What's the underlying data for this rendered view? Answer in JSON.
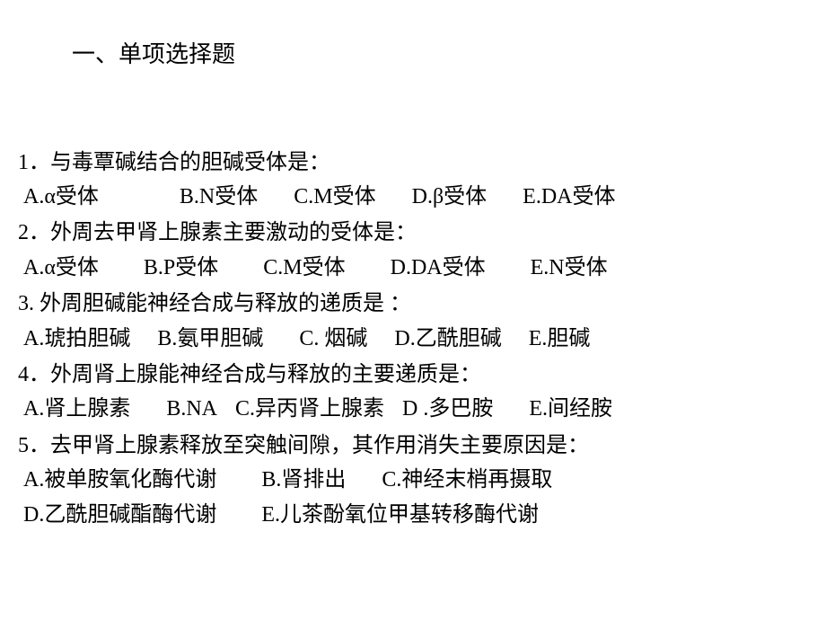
{
  "page": {
    "background": "#ffffff",
    "text_color": "#000000",
    "font_family": "SimSun",
    "font_size_body": 24,
    "font_size_title": 26,
    "line_height": 1.6
  },
  "section_title": "一、单项选择题",
  "questions": [
    {
      "number": "1．",
      "text": "与毒覃碱结合的胆碱受体是：",
      "options": [
        {
          "label": "A.α受体",
          "gap_after": 90
        },
        {
          "label": "B.N受体",
          "gap_after": 40
        },
        {
          "label": "C.M受体",
          "gap_after": 40
        },
        {
          "label": "D.β受体",
          "gap_after": 40
        },
        {
          "label": "E.DA受体",
          "gap_after": 0
        }
      ]
    },
    {
      "number": "2．",
      "text": "外周去甲肾上腺素主要激动的受体是：",
      "options": [
        {
          "label": "A.α受体",
          "gap_after": 50
        },
        {
          "label": "B.P受体",
          "gap_after": 50
        },
        {
          "label": "C.M受体",
          "gap_after": 50
        },
        {
          "label": "D.DA受体",
          "gap_after": 50
        },
        {
          "label": "E.N受体",
          "gap_after": 0
        }
      ]
    },
    {
      "number": "3. ",
      "text": "外周胆碱能神经合成与释放的递质是 ：",
      "options": [
        {
          "label": "A.琥拍胆碱",
          "gap_after": 30
        },
        {
          "label": "B.氨甲胆碱",
          "gap_after": 40
        },
        {
          "label": "C. 烟碱",
          "gap_after": 30
        },
        {
          "label": "D.乙酰胆碱",
          "gap_after": 30
        },
        {
          "label": "E.胆碱",
          "gap_after": 0
        }
      ]
    },
    {
      "number": "4．",
      "text": "外周肾上腺能神经合成与释放的主要递质是：",
      "options": [
        {
          "label": "A.肾上腺素",
          "gap_after": 40
        },
        {
          "label": "B.NA",
          "gap_after": 20
        },
        {
          "label": "C.异丙肾上腺素",
          "gap_after": 20
        },
        {
          "label": "D .多巴胺",
          "gap_after": 40
        },
        {
          "label": "E.间经胺",
          "gap_after": 0
        }
      ]
    },
    {
      "number": "5．",
      "text": "去甲肾上腺素释放至突触间隙，其作用消失主要原因是：",
      "options_line1": [
        {
          "label": "A.被单胺氧化酶代谢",
          "gap_after": 50
        },
        {
          "label": "B.肾排出",
          "gap_after": 40
        },
        {
          "label": "C.神经末梢再摄取",
          "gap_after": 0
        }
      ],
      "options_line2": [
        {
          "label": "D.乙酰胆碱酯酶代谢",
          "gap_after": 50
        },
        {
          "label": "E.儿茶酚氧位甲基转移酶代谢",
          "gap_after": 0
        }
      ]
    }
  ]
}
